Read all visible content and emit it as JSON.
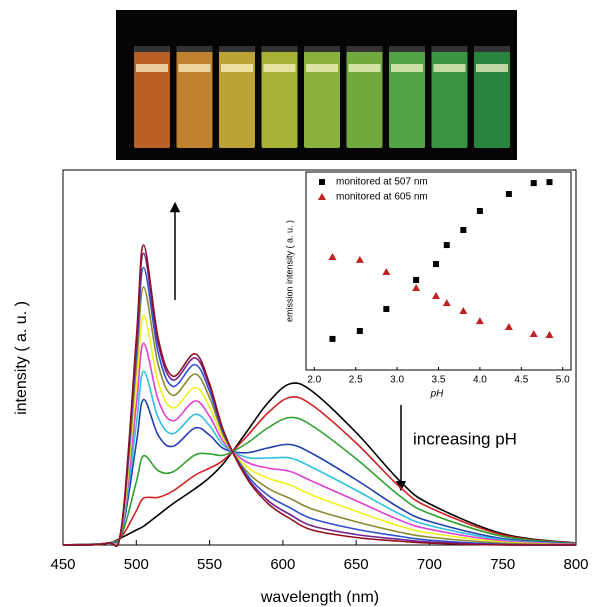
{
  "chart_data": [
    {
      "type": "line",
      "x_label": "wavelength (nm)",
      "y_label": "intensity ( a. u. )",
      "annotation": "increasing pH",
      "x": [
        450,
        480,
        490,
        500,
        505,
        515,
        525,
        540,
        550,
        560,
        575,
        590,
        605,
        620,
        650,
        680,
        700,
        750,
        800
      ],
      "xlim": [
        450,
        800
      ],
      "xticks": [
        450,
        500,
        550,
        600,
        650,
        700,
        750,
        800
      ],
      "ylim": [
        0,
        100
      ],
      "series": [
        {
          "color": "#000000",
          "values": [
            0,
            0.5,
            2,
            4,
            5,
            8,
            11,
            15,
            18,
            22,
            30,
            38,
            43,
            41,
            30,
            17,
            11,
            3,
            0.5
          ]
        },
        {
          "color": "#d02020",
          "values": [
            0,
            0.5,
            2.3,
            9.1,
            12.5,
            12.7,
            14.4,
            18.6,
            20.5,
            22.8,
            28.8,
            35.3,
            39.4,
            37.3,
            27.2,
            15.4,
            10,
            2.7,
            0.45
          ]
        },
        {
          "color": "#30a030",
          "values": [
            0,
            0.5,
            2.8,
            16.8,
            23.8,
            19.8,
            19.5,
            24,
            24.3,
            24,
            27,
            31.3,
            34,
            31.8,
            23,
            13,
            8.4,
            2.3,
            0.4
          ]
        },
        {
          "color": "#2040b0",
          "values": [
            0,
            0.5,
            3.4,
            27,
            38.8,
            29.2,
            26.3,
            31.2,
            29.3,
            25.6,
            24.6,
            25.9,
            26.8,
            24.4,
            17.4,
            9.8,
            6.3,
            1.7,
            0.3
          ]
        },
        {
          "color": "#30c0e0",
          "values": [
            0,
            0.5,
            3.7,
            32.1,
            46.3,
            33.9,
            29.7,
            34.8,
            31.8,
            26.4,
            23.4,
            23.2,
            23.2,
            20.7,
            14.6,
            8.2,
            5.2,
            1.4,
            0.2
          ]
        },
        {
          "color": "#e040d0",
          "values": [
            0,
            0.5,
            4,
            37.2,
            53.8,
            38.6,
            33.1,
            38.4,
            34.3,
            27.2,
            22.2,
            20.5,
            19.6,
            17,
            11.8,
            6.6,
            4.2,
            1.1,
            0.2
          ]
        },
        {
          "color": "#f0f020",
          "values": [
            0,
            0.5,
            4.3,
            42.3,
            61.3,
            43.3,
            36.5,
            42,
            36.8,
            28,
            21,
            17.8,
            16,
            13.3,
            9,
            5,
            3.2,
            0.8,
            0.1
          ]
        },
        {
          "color": "#8a8a30",
          "values": [
            0,
            0.5,
            4.6,
            47.4,
            68.8,
            48,
            39.9,
            45.6,
            39.3,
            28.8,
            19.8,
            15.1,
            12.4,
            9.6,
            6.2,
            3.4,
            2.1,
            0.5,
            0.1
          ]
        },
        {
          "color": "#3050d0",
          "values": [
            0,
            0.5,
            4.8,
            50.9,
            74,
            51.2,
            42.3,
            48.1,
            41,
            29.4,
            19,
            13.2,
            9.9,
            7,
            4.2,
            2.3,
            1.3,
            0.2,
            0
          ]
        },
        {
          "color": "#702090",
          "values": [
            0,
            0.5,
            4.9,
            53.5,
            77.8,
            53.6,
            44,
            49.9,
            42.3,
            29.8,
            18.4,
            11.8,
            8.1,
            5.1,
            2.8,
            1.5,
            0.8,
            0.1,
            0
          ]
        },
        {
          "color": "#901020",
          "values": [
            0,
            0.5,
            5,
            55,
            80,
            55,
            45,
            51,
            43,
            30,
            18,
            11,
            7,
            4,
            2,
            1,
            0.5,
            0,
            0
          ]
        }
      ]
    },
    {
      "type": "scatter",
      "x_label": "pH",
      "y_label": "emission intensity ( a. u. )",
      "x": [
        2.22,
        2.55,
        2.87,
        3.23,
        3.47,
        3.6,
        3.8,
        4.0,
        4.35,
        4.65,
        4.84
      ],
      "xlim": [
        1.9,
        5.1
      ],
      "xticks": [
        {
          "value": 2,
          "label": "2.0"
        },
        {
          "value": 2.5,
          "label": "2.5"
        },
        {
          "value": 3,
          "label": "3.0"
        },
        {
          "value": 3.5,
          "label": "3.5"
        },
        {
          "value": 4,
          "label": "4.0"
        },
        {
          "value": 4.5,
          "label": "4.5"
        },
        {
          "value": 5,
          "label": "5.0"
        }
      ],
      "ylim": [
        0,
        100
      ],
      "series": [
        {
          "name": "monitored at 507 nm",
          "color": "#000000",
          "marker": "square",
          "values": [
            15.7,
            19.7,
            30.8,
            45.5,
            53.5,
            63.1,
            70.7,
            80.3,
            88.9,
            94.4,
            94.9
          ]
        },
        {
          "name": "monitored at 605 nm",
          "color": "#c02020",
          "marker": "triangle",
          "values": [
            57.1,
            55.6,
            49.5,
            41.4,
            37.4,
            33.8,
            29.8,
            24.7,
            21.7,
            18.2,
            17.7
          ]
        }
      ]
    }
  ]
}
